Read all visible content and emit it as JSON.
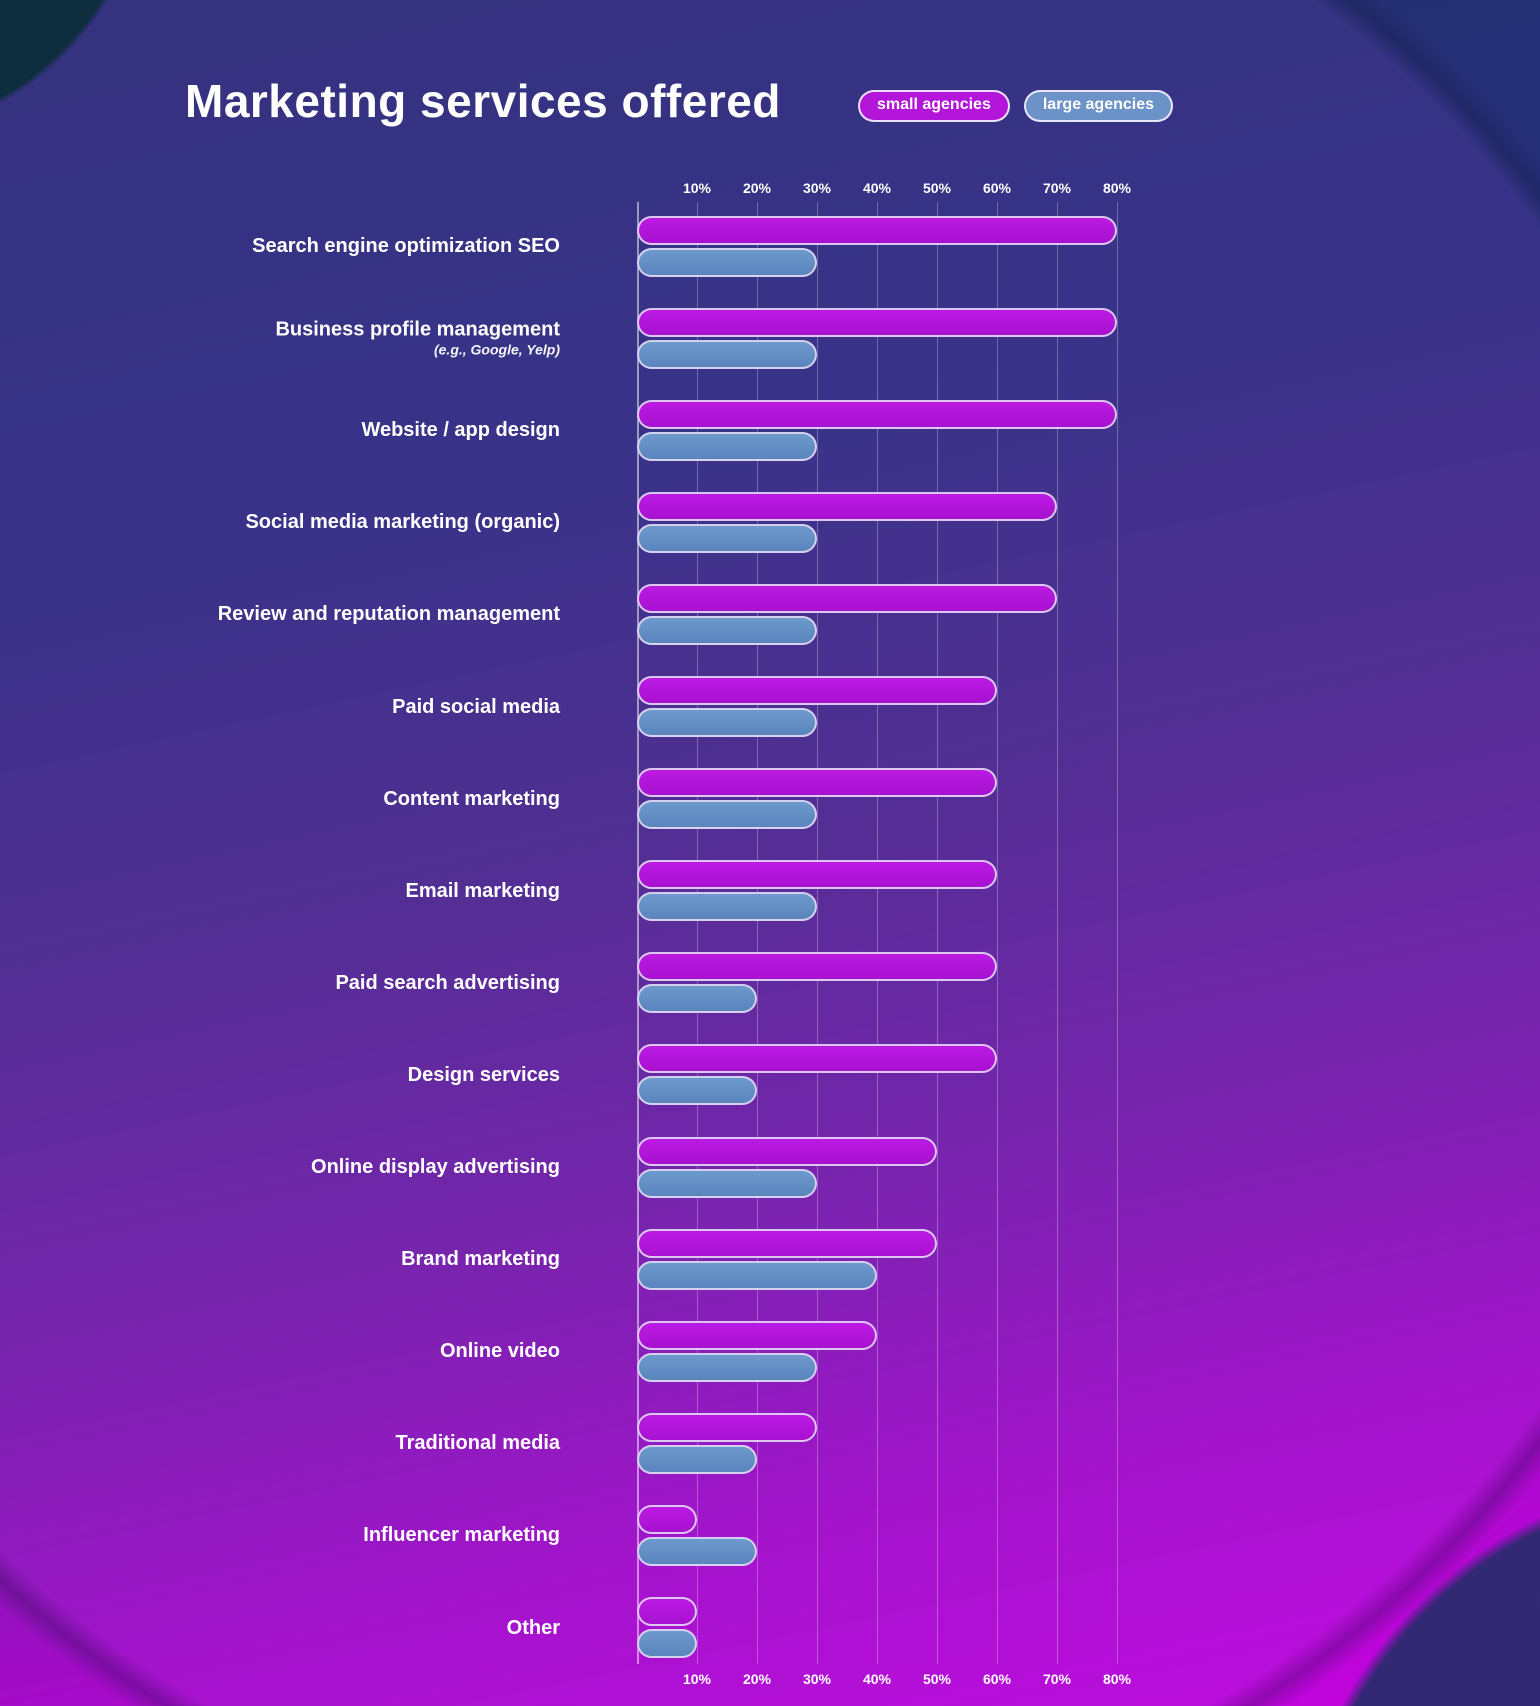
{
  "header": {
    "title": "Marketing services offered"
  },
  "chart_data": {
    "type": "bar",
    "orientation": "horizontal",
    "title": "Marketing services offered",
    "xlabel": "",
    "ylabel": "",
    "unit": "%",
    "xlim": [
      0,
      80
    ],
    "grid": true,
    "legend_position": "top-right",
    "axis_ticks_top": [
      "10%",
      "20%",
      "30%",
      "40%",
      "50%",
      "60%",
      "70%",
      "80%"
    ],
    "axis_ticks_bottom": [
      "10%",
      "20%",
      "30%",
      "40%",
      "50%",
      "60%",
      "70%",
      "80%"
    ],
    "categories": [
      {
        "label": "Search engine optimization SEO",
        "sublabel": ""
      },
      {
        "label": "Business profile management",
        "sublabel": "(e.g., Google, Yelp)"
      },
      {
        "label": "Website / app design",
        "sublabel": ""
      },
      {
        "label": "Social media marketing (organic)",
        "sublabel": ""
      },
      {
        "label": "Review and reputation management",
        "sublabel": ""
      },
      {
        "label": "Paid social media",
        "sublabel": ""
      },
      {
        "label": "Content marketing",
        "sublabel": ""
      },
      {
        "label": "Email marketing",
        "sublabel": ""
      },
      {
        "label": "Paid search advertising",
        "sublabel": ""
      },
      {
        "label": "Design services",
        "sublabel": ""
      },
      {
        "label": "Online display advertising",
        "sublabel": ""
      },
      {
        "label": "Brand marketing",
        "sublabel": ""
      },
      {
        "label": "Online video",
        "sublabel": ""
      },
      {
        "label": "Traditional media",
        "sublabel": ""
      },
      {
        "label": "Influencer marketing",
        "sublabel": ""
      },
      {
        "label": "Other",
        "sublabel": ""
      }
    ],
    "series": [
      {
        "name": "small agencies",
        "color": "#b416d9",
        "values": [
          80,
          80,
          80,
          70,
          70,
          60,
          60,
          60,
          60,
          60,
          50,
          50,
          40,
          30,
          10,
          10
        ]
      },
      {
        "name": "large agencies",
        "color": "#6b93c8",
        "values": [
          30,
          30,
          30,
          30,
          30,
          30,
          30,
          30,
          20,
          20,
          30,
          40,
          30,
          20,
          20,
          10
        ]
      }
    ]
  },
  "colors": {
    "background_top": "#232f6e",
    "background_bottom": "#c602e0",
    "corner_teal": "#0e2d3f",
    "bar_small_agencies": "#b416d9",
    "bar_large_agencies": "#6b93c8",
    "bar_border": "#ded6f2",
    "text": "#ffffff"
  }
}
